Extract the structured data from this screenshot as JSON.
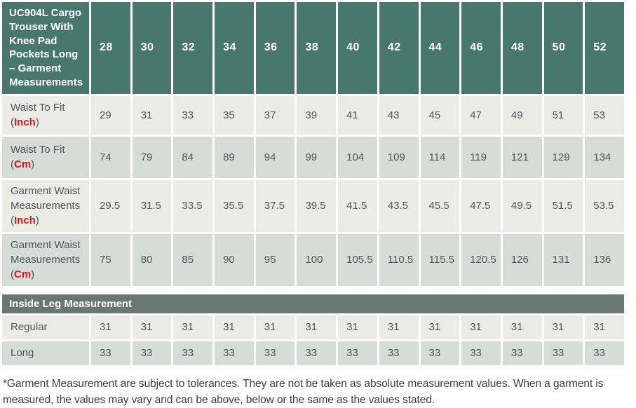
{
  "chart_data": [
    {
      "type": "table",
      "title": "UC904L Cargo Trouser With Knee Pad Pockets Long – Garment Measurements",
      "columns": [
        "28",
        "30",
        "32",
        "34",
        "36",
        "38",
        "40",
        "42",
        "44",
        "46",
        "48",
        "50",
        "52"
      ],
      "rows": [
        {
          "label": "Waist To Fit",
          "unit": "Inch",
          "values": [
            "29",
            "31",
            "33",
            "35",
            "37",
            "39",
            "41",
            "43",
            "45",
            "47",
            "49",
            "51",
            "53"
          ]
        },
        {
          "label": "Waist To Fit",
          "unit": "Cm",
          "values": [
            "74",
            "79",
            "84",
            "89",
            "94",
            "99",
            "104",
            "109",
            "114",
            "119",
            "121",
            "129",
            "134"
          ]
        },
        {
          "label": "Garment Waist Measurements",
          "unit": "Inch",
          "values": [
            "29.5",
            "31.5",
            "33.5",
            "35.5",
            "37.5",
            "39.5",
            "41.5",
            "43.5",
            "45.5",
            "47.5",
            "49.5",
            "51.5",
            "53.5"
          ]
        },
        {
          "label": "Garment Waist Measurements",
          "unit": "Cm",
          "values": [
            "75",
            "80",
            "85",
            "90",
            "95",
            "100",
            "105.5",
            "110.5",
            "115.5",
            "120.5",
            "126",
            "131",
            "136"
          ]
        }
      ]
    },
    {
      "type": "table",
      "title": "Inside Leg Measurement",
      "rows": [
        {
          "label": "Regular",
          "values": [
            "31",
            "31",
            "31",
            "31",
            "31",
            "31",
            "31",
            "31",
            "31",
            "31",
            "31",
            "31",
            "31"
          ]
        },
        {
          "label": "Long",
          "values": [
            "33",
            "33",
            "33",
            "33",
            "33",
            "33",
            "33",
            "33",
            "33",
            "33",
            "33",
            "33",
            "33"
          ]
        }
      ]
    }
  ],
  "formatting": {
    "unit_open": "(",
    "unit_close": ")"
  },
  "footnote": "*Garment Measurement are subject to tolerances. They are not be taken as absolute measurement values. When a garment is measured, the values may vary and can be above, below or the same as the values stated.",
  "colors": {
    "header_bg": "#48786C",
    "section_bg": "#697672",
    "row_light": "#EBEBE5",
    "row_dark": "#D6DCD8",
    "unit_red": "#E0161D",
    "text": "#51555A",
    "footnote_text": "#3C3C3C"
  }
}
